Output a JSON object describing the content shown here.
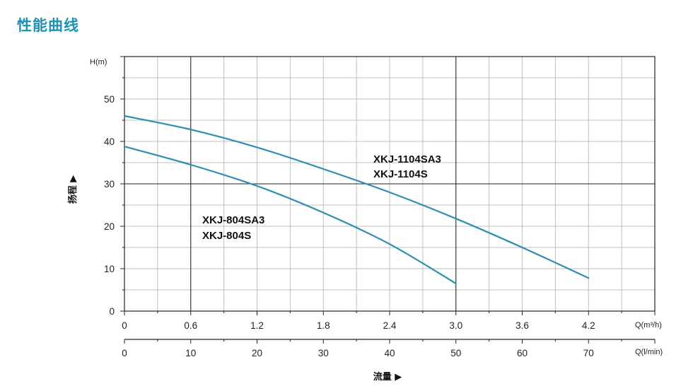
{
  "page_title": "性能曲线",
  "colors": {
    "curve": "#2a8fb2",
    "grid": "#bfbfbf",
    "grid_major": "#222222"
  },
  "chart_data": {
    "type": "line",
    "ylabel": "H(m)",
    "ylabel_cn": "扬程 ▶",
    "xlabel_primary_unit": "Q(m³/h)",
    "xlabel_secondary_unit": "Q(l/min)",
    "xlabel_cn": "流量 ▶",
    "x_ticks": [
      "0",
      "0.6",
      "1.2",
      "1.8",
      "2.4",
      "3.0",
      "3.6",
      "4.2"
    ],
    "x2_ticks": [
      "0",
      "10",
      "20",
      "30",
      "40",
      "50",
      "60",
      "70"
    ],
    "y_ticks": [
      "0",
      "10",
      "20",
      "30",
      "40",
      "50"
    ],
    "xlim": [
      0,
      4.8
    ],
    "ylim": [
      0,
      60
    ],
    "series": [
      {
        "name_lines": [
          "XKJ-1104SA3",
          "XKJ-1104S"
        ],
        "x": [
          0,
          0.6,
          1.2,
          1.8,
          2.4,
          3.0,
          3.6,
          4.2
        ],
        "y": [
          46,
          42.8,
          38.6,
          33.5,
          28,
          21.8,
          15,
          7.8
        ]
      },
      {
        "name_lines": [
          "XKJ-804SA3",
          "XKJ-804S"
        ],
        "x": [
          0,
          0.6,
          1.2,
          1.8,
          2.4,
          3.0
        ],
        "y": [
          38.8,
          34.5,
          29.5,
          23.2,
          15.8,
          6.5
        ]
      }
    ]
  }
}
